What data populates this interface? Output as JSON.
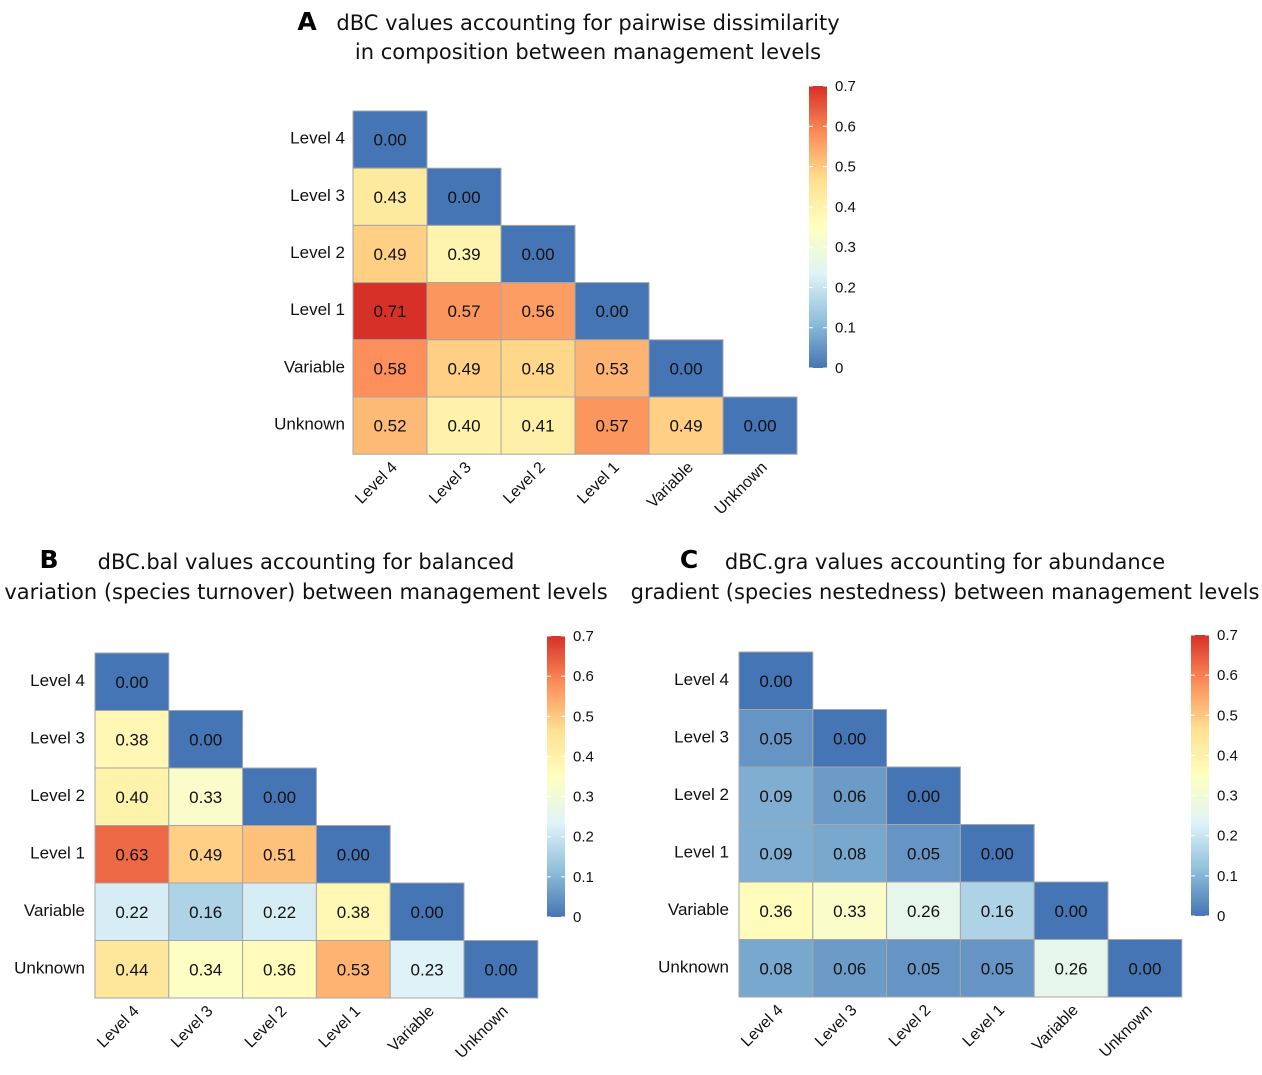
{
  "chart_data": [
    {
      "type": "heatmap",
      "panel_label": "A",
      "title_lines": [
        "dBC values accounting for pairwise dissimilarity",
        "in composition between management levels"
      ],
      "row_labels": [
        "Level 4",
        "Level 3",
        "Level 2",
        "Level 1",
        "Variable",
        "Unknown"
      ],
      "col_labels": [
        "Level 4",
        "Level 3",
        "Level 2",
        "Level 1",
        "Variable",
        "Unknown"
      ],
      "values": [
        [
          "0.00"
        ],
        [
          "0.43",
          "0.00"
        ],
        [
          "0.49",
          "0.39",
          "0.00"
        ],
        [
          "0.71",
          "0.57",
          "0.56",
          "0.00"
        ],
        [
          "0.58",
          "0.49",
          "0.48",
          "0.53",
          "0.00"
        ],
        [
          "0.52",
          "0.40",
          "0.41",
          "0.57",
          "0.49",
          "0.00"
        ]
      ],
      "legend": {
        "ticks": [
          "0.7",
          "0.6",
          "0.5",
          "0.4",
          "0.3",
          "0.2",
          "0.1",
          "0"
        ],
        "range": [
          0,
          0.7
        ],
        "position": "right"
      }
    },
    {
      "type": "heatmap",
      "panel_label": "B",
      "title_lines": [
        "dBC.bal values accounting for balanced",
        "variation (species turnover) between management levels"
      ],
      "row_labels": [
        "Level 4",
        "Level 3",
        "Level 2",
        "Level 1",
        "Variable",
        "Unknown"
      ],
      "col_labels": [
        "Level 4",
        "Level 3",
        "Level 2",
        "Level 1",
        "Variable",
        "Unknown"
      ],
      "values": [
        [
          "0.00"
        ],
        [
          "0.38",
          "0.00"
        ],
        [
          "0.40",
          "0.33",
          "0.00"
        ],
        [
          "0.63",
          "0.49",
          "0.51",
          "0.00"
        ],
        [
          "0.22",
          "0.16",
          "0.22",
          "0.38",
          "0.00"
        ],
        [
          "0.44",
          "0.34",
          "0.36",
          "0.53",
          "0.23",
          "0.00"
        ]
      ],
      "legend": {
        "ticks": [
          "0.7",
          "0.6",
          "0.5",
          "0.4",
          "0.3",
          "0.2",
          "0.1",
          "0"
        ],
        "range": [
          0,
          0.7
        ],
        "position": "right"
      }
    },
    {
      "type": "heatmap",
      "panel_label": "C",
      "title_lines": [
        "dBC.gra values accounting for abundance",
        "gradient (species nestedness) between management levels"
      ],
      "row_labels": [
        "Level 4",
        "Level 3",
        "Level 2",
        "Level 1",
        "Variable",
        "Unknown"
      ],
      "col_labels": [
        "Level 4",
        "Level 3",
        "Level 2",
        "Level 1",
        "Variable",
        "Unknown"
      ],
      "values": [
        [
          "0.00"
        ],
        [
          "0.05",
          "0.00"
        ],
        [
          "0.09",
          "0.06",
          "0.00"
        ],
        [
          "0.09",
          "0.08",
          "0.05",
          "0.00"
        ],
        [
          "0.36",
          "0.33",
          "0.26",
          "0.16",
          "0.00"
        ],
        [
          "0.08",
          "0.06",
          "0.05",
          "0.05",
          "0.26",
          "0.00"
        ]
      ],
      "legend": {
        "ticks": [
          "0.7",
          "0.6",
          "0.5",
          "0.4",
          "0.3",
          "0.2",
          "0.1",
          "0"
        ],
        "range": [
          0,
          0.7
        ],
        "position": "right"
      }
    }
  ],
  "colors": {
    "scale": [
      "#4575b4",
      "#91bfdb",
      "#e0f3f8",
      "#ffffbf",
      "#fee090",
      "#fc8d59",
      "#d73027"
    ],
    "cell_border": "#a6a6a6",
    "text": "#111111"
  }
}
